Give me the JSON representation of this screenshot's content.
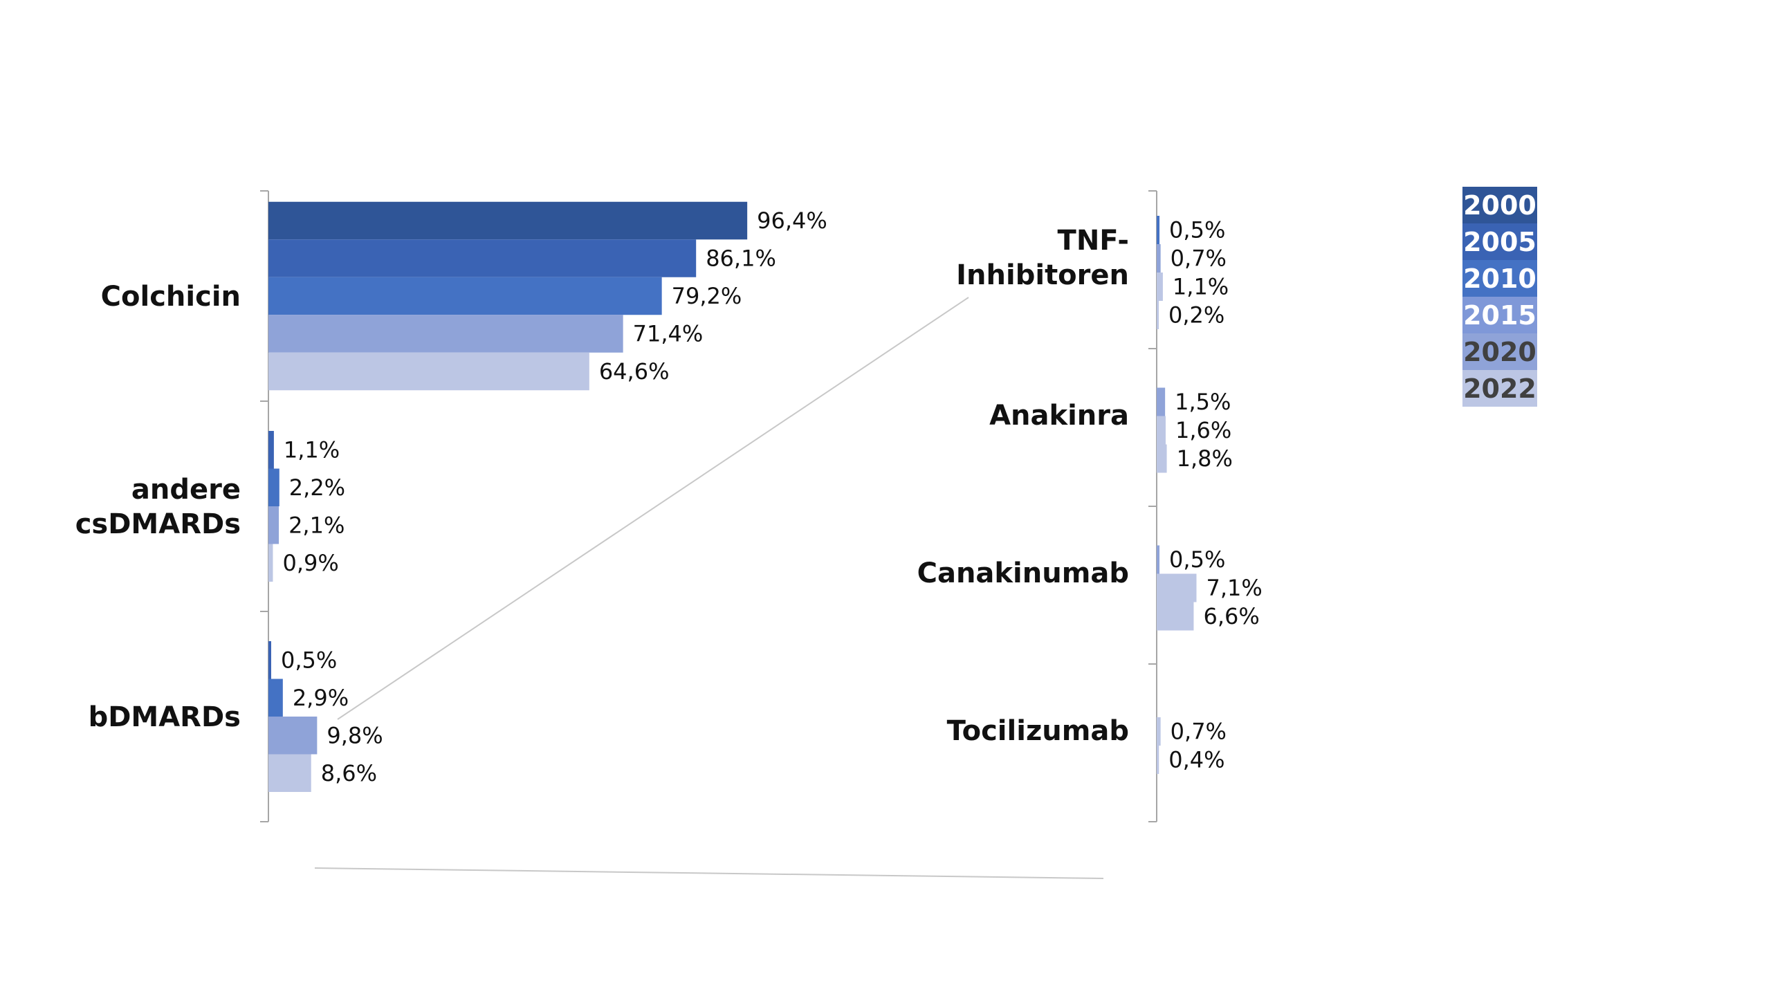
{
  "chart_data": [
    {
      "type": "bar",
      "orientation": "horizontal",
      "categories": [
        "Colchicin",
        "andere csDMARDs",
        "bDMARDs"
      ],
      "category_lines": [
        [
          "Colchicin"
        ],
        [
          "andere",
          "csDMARDs"
        ],
        [
          "bDMARDs"
        ]
      ],
      "xlim": [
        0,
        100
      ],
      "grid": false,
      "series": [
        {
          "name": "2000",
          "values": [
            96.4,
            null,
            null
          ],
          "labels": [
            "96,4%",
            "",
            ""
          ]
        },
        {
          "name": "2005",
          "values": [
            86.1,
            1.1,
            0.5
          ],
          "labels": [
            "86,1%",
            "1,1%",
            "0,5%"
          ]
        },
        {
          "name": "2010",
          "values": [
            79.2,
            2.2,
            2.9
          ],
          "labels": [
            "79,2%",
            "2,2%",
            "2,9%"
          ]
        },
        {
          "name": "2015",
          "values": [
            71.4,
            2.1,
            9.8
          ],
          "labels": [
            "71,4%",
            "2,1%",
            "9,8%"
          ]
        },
        {
          "name": "2020",
          "values": [
            64.6,
            0.9,
            8.6
          ],
          "labels": [
            "64,6%",
            "0,9%",
            "8,6%"
          ]
        },
        {
          "name": "2022",
          "values": [
            null,
            null,
            null
          ],
          "labels": [
            "",
            "",
            ""
          ]
        }
      ]
    },
    {
      "type": "bar",
      "orientation": "horizontal",
      "categories": [
        "TNF-Inhibitoren",
        "Anakinra",
        "Canakinumab",
        "Tocilizumab"
      ],
      "category_lines": [
        [
          "TNF-",
          "Inhibitoren"
        ],
        [
          "Anakinra"
        ],
        [
          "Canakinumab"
        ],
        [
          "Tocilizumab"
        ]
      ],
      "xlim": [
        0,
        100
      ],
      "grid": false,
      "series": [
        {
          "name": "2010",
          "values": [
            0.5,
            null,
            null,
            null
          ],
          "labels": [
            "0,5%",
            "",
            "",
            ""
          ]
        },
        {
          "name": "2015",
          "values": [
            0.7,
            1.5,
            0.5,
            null
          ],
          "labels": [
            "0,7%",
            "1,5%",
            "0,5%",
            ""
          ]
        },
        {
          "name": "2020",
          "values": [
            1.1,
            1.6,
            7.1,
            0.7
          ],
          "labels": [
            "1,1%",
            "1,6%",
            "7,1%",
            "0,7%"
          ]
        },
        {
          "name": "2022",
          "values": [
            0.2,
            1.8,
            6.6,
            0.4
          ],
          "labels": [
            "0,2%",
            "1,8%",
            "6,6%",
            "0,4%"
          ]
        }
      ]
    }
  ],
  "legend": {
    "placement": "top-right",
    "items": [
      {
        "label": "2000",
        "color": "#2f5597",
        "text_color": "#ffffff"
      },
      {
        "label": "2005",
        "color": "#3a63b4",
        "text_color": "#ffffff"
      },
      {
        "label": "2010",
        "color": "#4472c4",
        "text_color": "#ffffff"
      },
      {
        "label": "2015",
        "color": "#7f98d8",
        "text_color": "#ffffff"
      },
      {
        "label": "2020",
        "color": "#8fa3d8",
        "text_color": "#404040"
      },
      {
        "label": "2022",
        "color": "#bcc6e4",
        "text_color": "#404040"
      }
    ]
  },
  "colors": {
    "2000": "#2f5597",
    "2005": "#3a63b4",
    "2010": "#4472c4",
    "2015": "#8fa3d8",
    "2020": "#bcc6e4",
    "2022": "#bcc6e4"
  }
}
